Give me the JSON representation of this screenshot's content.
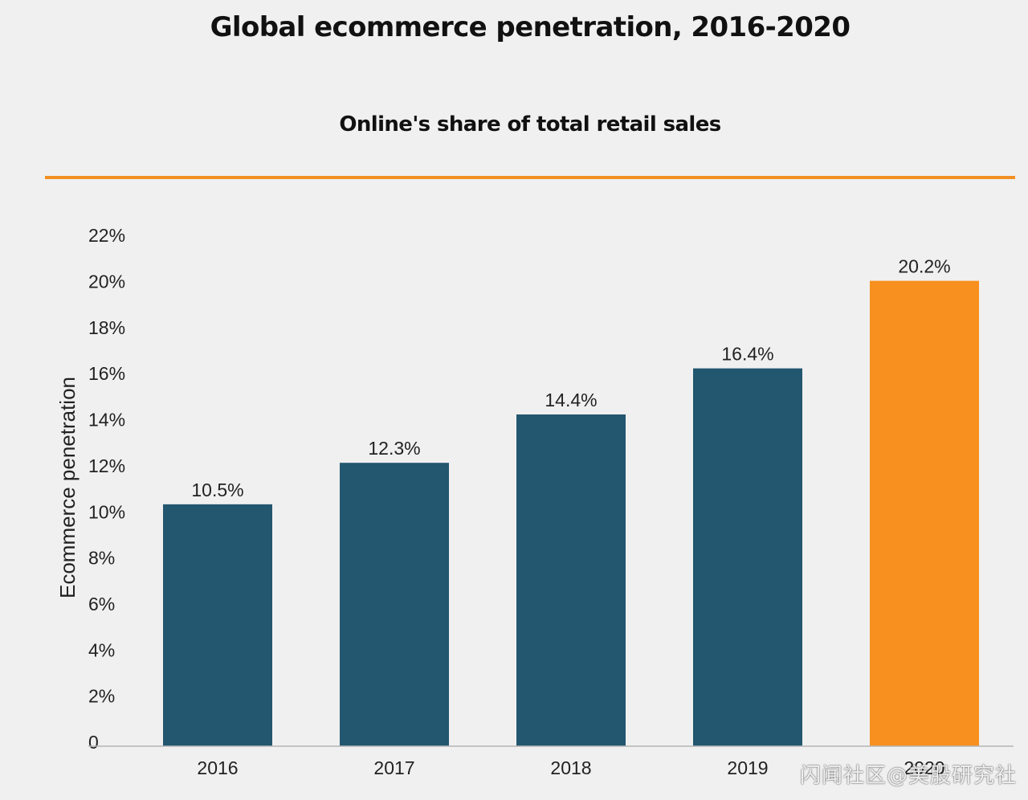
{
  "colors": {
    "background": "#f0f0f0",
    "bar_default": "#23566f",
    "bar_highlight": "#f7901e",
    "divider": "#f39022",
    "axis_line": "#b5b5b5",
    "text": "#222222"
  },
  "chart_data": {
    "type": "bar",
    "title": "Global ecommerce penetration, 2016-2020",
    "subtitle": "Online's share of total retail sales",
    "xlabel": "",
    "ylabel": "Ecommerce penetration",
    "categories": [
      "2016",
      "2017",
      "2018",
      "2019",
      "2020"
    ],
    "values": [
      10.5,
      12.3,
      14.4,
      16.4,
      20.2
    ],
    "value_labels": [
      "10.5%",
      "12.3%",
      "14.4%",
      "16.4%",
      "20.2%"
    ],
    "highlight_index": 4,
    "ylim": [
      0,
      22
    ],
    "yticks": [
      0,
      2,
      4,
      6,
      8,
      10,
      12,
      14,
      16,
      18,
      20,
      22
    ],
    "ytick_labels": [
      "0",
      "2%",
      "4%",
      "6%",
      "8%",
      "10%",
      "12%",
      "14%",
      "16%",
      "18%",
      "20%",
      "22%"
    ],
    "grid": false,
    "legend": "none"
  },
  "watermark": "闪闻社区@美股研究社"
}
